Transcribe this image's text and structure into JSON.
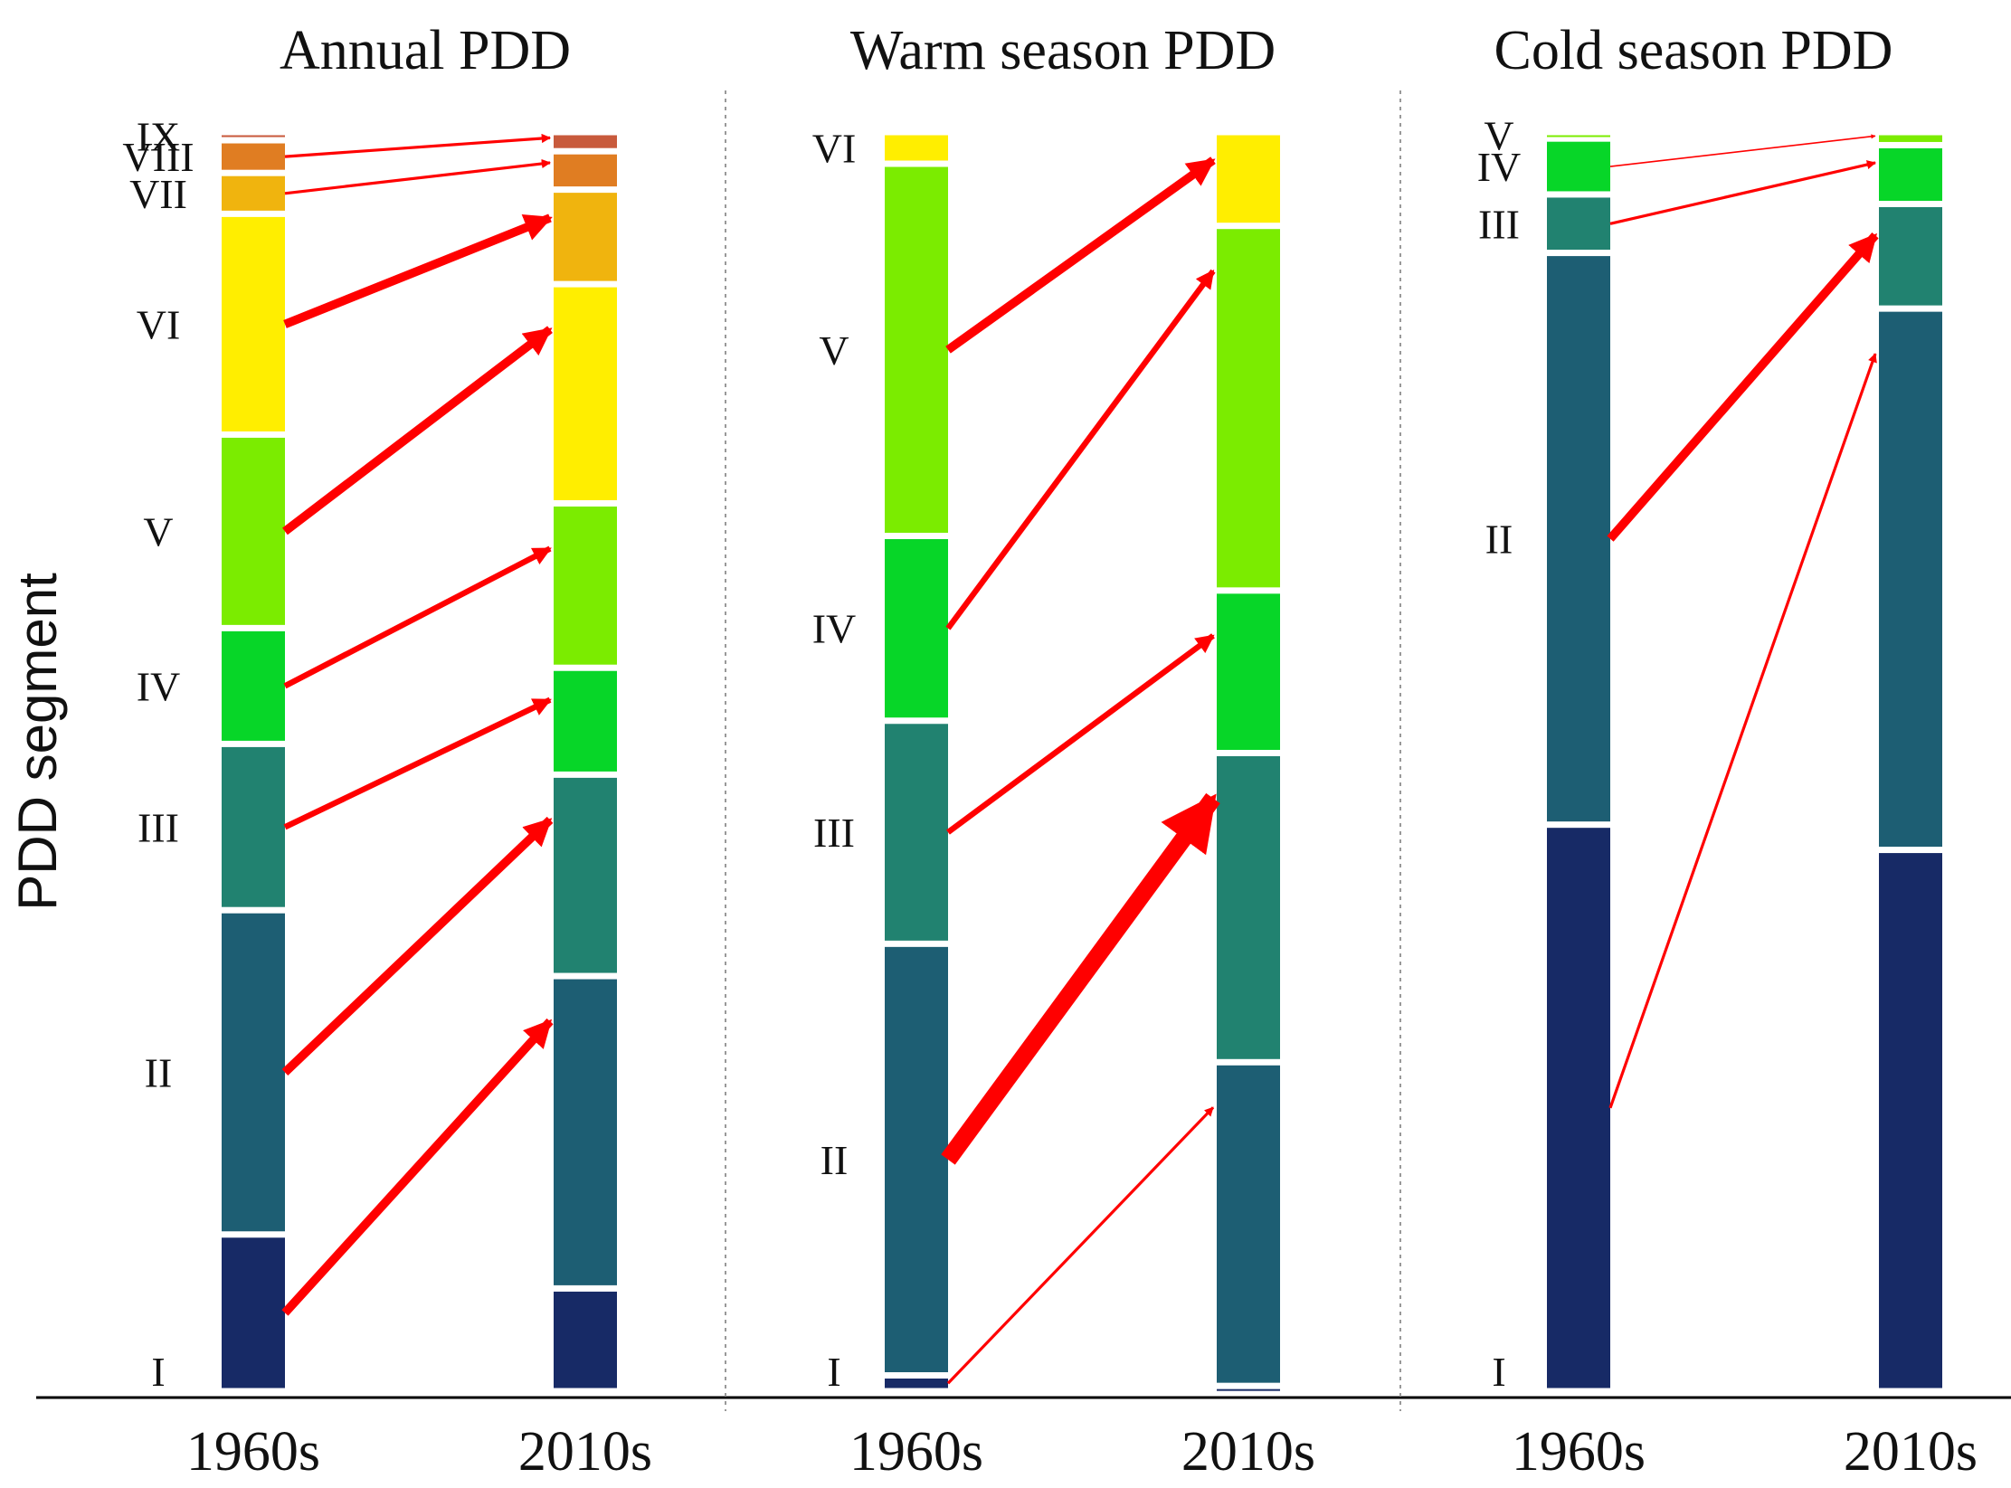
{
  "chart_data": {
    "type": "stacked-bar-transition",
    "ylabel": "PDD segment",
    "arrow_color": "#ff0000",
    "roman": [
      "I",
      "II",
      "III",
      "IV",
      "V",
      "VI",
      "VII",
      "VIII",
      "IX"
    ],
    "colors": {
      "I": "#172a66",
      "II": "#1d5e73",
      "III": "#218270",
      "IV": "#07d628",
      "V": "#7bec00",
      "VI": "#ffee00",
      "VII": "#f0b40e",
      "VIII": "#e07d22",
      "IX": "#c85a3c"
    },
    "panels": [
      {
        "title": "Annual PDD",
        "periods": [
          "1960s",
          "2010s"
        ],
        "segments": [
          "I",
          "II",
          "III",
          "IV",
          "V",
          "VI",
          "VII",
          "VIII",
          "IX"
        ],
        "shares_1960s": [
          11.5,
          23.8,
          12.2,
          8.5,
          14.2,
          16.2,
          3.0,
          2.4,
          0.6
        ],
        "shares_2010s": [
          7.5,
          22.8,
          14.7,
          7.8,
          12.0,
          16.0,
          6.9,
          2.8,
          1.4
        ],
        "arrow_weights": [
          3,
          3,
          2,
          2,
          3,
          3,
          1,
          1
        ]
      },
      {
        "title": "Warm season PDD",
        "periods": [
          "1960s",
          "2010s"
        ],
        "segments": [
          "I",
          "II",
          "III",
          "IV",
          "V",
          "VI"
        ],
        "shares_1960s": [
          1.2,
          32.7,
          16.9,
          14.0,
          28.2,
          2.4
        ],
        "shares_2010s": [
          0.4,
          24.5,
          23.4,
          12.3,
          27.6,
          7.1
        ],
        "arrow_weights": [
          1,
          6,
          2,
          2,
          3
        ]
      },
      {
        "title": "Cold season PDD",
        "periods": [
          "1960s",
          "2010s"
        ],
        "segments": [
          "I",
          "II",
          "III",
          "IV",
          "V"
        ],
        "shares_1960s": [
          43.6,
          44.0,
          4.5,
          4.3,
          0.5
        ],
        "shares_2010s": [
          41.4,
          41.4,
          8.0,
          4.5,
          1.0
        ],
        "arrow_weights": [
          1,
          3,
          1,
          0.5
        ]
      }
    ]
  }
}
